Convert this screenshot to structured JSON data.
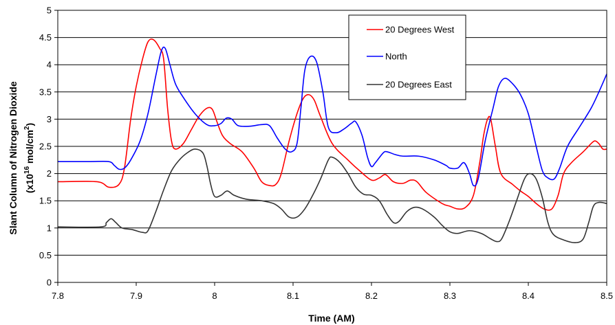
{
  "chart_data": {
    "type": "line",
    "xlabel": "Time (AM)",
    "ylabel_main": "Slant Column of Nitrogen Dioxide",
    "ylabel_unit_prefix": "(x10",
    "ylabel_unit_exp": "16",
    "ylabel_unit_mid": " mol/cm",
    "ylabel_unit_exp2": "2",
    "ylabel_unit_suffix": ")",
    "xlim": [
      7.8,
      8.5
    ],
    "ylim": [
      0,
      5
    ],
    "x_ticks": [
      "7.8",
      "7.9",
      "8",
      "8.1",
      "8.2",
      "8.3",
      "8.4",
      "8.5"
    ],
    "y_ticks": [
      "0",
      "0.5",
      "1",
      "1.5",
      "2",
      "2.5",
      "3",
      "3.5",
      "4",
      "4.5",
      "5"
    ],
    "grid": "horizontal",
    "legend_position": "top-right",
    "series": [
      {
        "name": "20 Degrees West",
        "color": "#ff0000",
        "points": [
          [
            7.8,
            1.85
          ],
          [
            7.85,
            1.85
          ],
          [
            7.865,
            1.75
          ],
          [
            7.878,
            1.8
          ],
          [
            7.885,
            2.1
          ],
          [
            7.893,
            3.0
          ],
          [
            7.9,
            3.6
          ],
          [
            7.908,
            4.1
          ],
          [
            7.915,
            4.42
          ],
          [
            7.922,
            4.46
          ],
          [
            7.93,
            4.3
          ],
          [
            7.935,
            4.1
          ],
          [
            7.94,
            3.2
          ],
          [
            7.945,
            2.6
          ],
          [
            7.95,
            2.45
          ],
          [
            7.96,
            2.55
          ],
          [
            7.97,
            2.8
          ],
          [
            7.98,
            3.05
          ],
          [
            7.99,
            3.2
          ],
          [
            7.997,
            3.18
          ],
          [
            8.003,
            2.95
          ],
          [
            8.01,
            2.7
          ],
          [
            8.02,
            2.55
          ],
          [
            8.035,
            2.4
          ],
          [
            8.05,
            2.1
          ],
          [
            8.06,
            1.85
          ],
          [
            8.07,
            1.78
          ],
          [
            8.078,
            1.8
          ],
          [
            8.085,
            2.0
          ],
          [
            8.095,
            2.6
          ],
          [
            8.105,
            3.1
          ],
          [
            8.113,
            3.38
          ],
          [
            8.12,
            3.45
          ],
          [
            8.127,
            3.35
          ],
          [
            8.135,
            3.05
          ],
          [
            8.15,
            2.55
          ],
          [
            8.17,
            2.25
          ],
          [
            8.185,
            2.05
          ],
          [
            8.2,
            1.88
          ],
          [
            8.21,
            1.92
          ],
          [
            8.218,
            1.98
          ],
          [
            8.228,
            1.85
          ],
          [
            8.24,
            1.82
          ],
          [
            8.25,
            1.88
          ],
          [
            8.258,
            1.85
          ],
          [
            8.27,
            1.65
          ],
          [
            8.29,
            1.45
          ],
          [
            8.3,
            1.4
          ],
          [
            8.31,
            1.35
          ],
          [
            8.32,
            1.38
          ],
          [
            8.33,
            1.6
          ],
          [
            8.338,
            2.2
          ],
          [
            8.343,
            2.7
          ],
          [
            8.348,
            3.0
          ],
          [
            8.352,
            3.0
          ],
          [
            8.358,
            2.5
          ],
          [
            8.365,
            2.0
          ],
          [
            8.38,
            1.8
          ],
          [
            8.39,
            1.68
          ],
          [
            8.4,
            1.58
          ],
          [
            8.41,
            1.45
          ],
          [
            8.42,
            1.35
          ],
          [
            8.43,
            1.35
          ],
          [
            8.438,
            1.6
          ],
          [
            8.445,
            2.0
          ],
          [
            8.455,
            2.2
          ],
          [
            8.47,
            2.4
          ],
          [
            8.48,
            2.55
          ],
          [
            8.485,
            2.6
          ],
          [
            8.49,
            2.55
          ],
          [
            8.495,
            2.45
          ],
          [
            8.5,
            2.45
          ]
        ]
      },
      {
        "name": "North",
        "color": "#0000ff",
        "points": [
          [
            7.8,
            2.22
          ],
          [
            7.84,
            2.22
          ],
          [
            7.865,
            2.22
          ],
          [
            7.872,
            2.15
          ],
          [
            7.878,
            2.08
          ],
          [
            7.885,
            2.1
          ],
          [
            7.893,
            2.25
          ],
          [
            7.905,
            2.6
          ],
          [
            7.915,
            3.1
          ],
          [
            7.925,
            3.8
          ],
          [
            7.932,
            4.25
          ],
          [
            7.937,
            4.3
          ],
          [
            7.943,
            4.0
          ],
          [
            7.95,
            3.65
          ],
          [
            7.96,
            3.4
          ],
          [
            7.975,
            3.1
          ],
          [
            7.99,
            2.9
          ],
          [
            8.0,
            2.88
          ],
          [
            8.008,
            2.92
          ],
          [
            8.015,
            3.02
          ],
          [
            8.022,
            3.0
          ],
          [
            8.03,
            2.88
          ],
          [
            8.045,
            2.87
          ],
          [
            8.06,
            2.9
          ],
          [
            8.07,
            2.88
          ],
          [
            8.08,
            2.65
          ],
          [
            8.09,
            2.45
          ],
          [
            8.098,
            2.4
          ],
          [
            8.105,
            2.55
          ],
          [
            8.11,
            3.2
          ],
          [
            8.115,
            3.9
          ],
          [
            8.122,
            4.15
          ],
          [
            8.13,
            4.05
          ],
          [
            8.138,
            3.5
          ],
          [
            8.145,
            2.85
          ],
          [
            8.155,
            2.75
          ],
          [
            8.165,
            2.82
          ],
          [
            8.175,
            2.93
          ],
          [
            8.18,
            2.95
          ],
          [
            8.188,
            2.7
          ],
          [
            8.195,
            2.3
          ],
          [
            8.2,
            2.13
          ],
          [
            8.205,
            2.2
          ],
          [
            8.215,
            2.38
          ],
          [
            8.22,
            2.4
          ],
          [
            8.23,
            2.35
          ],
          [
            8.24,
            2.32
          ],
          [
            8.26,
            2.32
          ],
          [
            8.28,
            2.25
          ],
          [
            8.295,
            2.15
          ],
          [
            8.3,
            2.1
          ],
          [
            8.31,
            2.1
          ],
          [
            8.318,
            2.2
          ],
          [
            8.325,
            2.0
          ],
          [
            8.33,
            1.78
          ],
          [
            8.336,
            1.9
          ],
          [
            8.345,
            2.6
          ],
          [
            8.355,
            3.2
          ],
          [
            8.362,
            3.6
          ],
          [
            8.37,
            3.75
          ],
          [
            8.38,
            3.65
          ],
          [
            8.39,
            3.45
          ],
          [
            8.4,
            3.1
          ],
          [
            8.41,
            2.5
          ],
          [
            8.418,
            2.05
          ],
          [
            8.425,
            1.92
          ],
          [
            8.433,
            1.9
          ],
          [
            8.44,
            2.1
          ],
          [
            8.45,
            2.5
          ],
          [
            8.465,
            2.85
          ],
          [
            8.48,
            3.2
          ],
          [
            8.49,
            3.5
          ],
          [
            8.5,
            3.83
          ]
        ]
      },
      {
        "name": "20 Degrees East",
        "color": "#333333",
        "points": [
          [
            7.8,
            1.02
          ],
          [
            7.855,
            1.02
          ],
          [
            7.862,
            1.1
          ],
          [
            7.868,
            1.17
          ],
          [
            7.874,
            1.1
          ],
          [
            7.882,
            1.0
          ],
          [
            7.895,
            0.97
          ],
          [
            7.908,
            0.92
          ],
          [
            7.915,
            0.95
          ],
          [
            7.925,
            1.3
          ],
          [
            7.935,
            1.7
          ],
          [
            7.945,
            2.05
          ],
          [
            7.955,
            2.25
          ],
          [
            7.965,
            2.38
          ],
          [
            7.975,
            2.45
          ],
          [
            7.985,
            2.38
          ],
          [
            7.99,
            2.15
          ],
          [
            7.995,
            1.8
          ],
          [
            8.0,
            1.58
          ],
          [
            8.008,
            1.6
          ],
          [
            8.016,
            1.68
          ],
          [
            8.025,
            1.6
          ],
          [
            8.04,
            1.53
          ],
          [
            8.06,
            1.5
          ],
          [
            8.075,
            1.45
          ],
          [
            8.085,
            1.35
          ],
          [
            8.095,
            1.2
          ],
          [
            8.105,
            1.2
          ],
          [
            8.115,
            1.35
          ],
          [
            8.125,
            1.6
          ],
          [
            8.135,
            1.9
          ],
          [
            8.145,
            2.25
          ],
          [
            8.15,
            2.3
          ],
          [
            8.16,
            2.2
          ],
          [
            8.17,
            2.0
          ],
          [
            8.18,
            1.75
          ],
          [
            8.19,
            1.62
          ],
          [
            8.2,
            1.6
          ],
          [
            8.21,
            1.5
          ],
          [
            8.22,
            1.25
          ],
          [
            8.228,
            1.1
          ],
          [
            8.235,
            1.12
          ],
          [
            8.245,
            1.3
          ],
          [
            8.255,
            1.38
          ],
          [
            8.265,
            1.35
          ],
          [
            8.28,
            1.2
          ],
          [
            8.29,
            1.05
          ],
          [
            8.3,
            0.93
          ],
          [
            8.31,
            0.9
          ],
          [
            8.325,
            0.95
          ],
          [
            8.34,
            0.9
          ],
          [
            8.352,
            0.8
          ],
          [
            8.36,
            0.75
          ],
          [
            8.366,
            0.8
          ],
          [
            8.375,
            1.1
          ],
          [
            8.385,
            1.5
          ],
          [
            8.395,
            1.9
          ],
          [
            8.402,
            2.0
          ],
          [
            8.41,
            1.9
          ],
          [
            8.418,
            1.55
          ],
          [
            8.425,
            1.1
          ],
          [
            8.432,
            0.88
          ],
          [
            8.445,
            0.78
          ],
          [
            8.46,
            0.73
          ],
          [
            8.47,
            0.8
          ],
          [
            8.477,
            1.1
          ],
          [
            8.483,
            1.4
          ],
          [
            8.49,
            1.47
          ],
          [
            8.5,
            1.45
          ]
        ]
      }
    ]
  }
}
